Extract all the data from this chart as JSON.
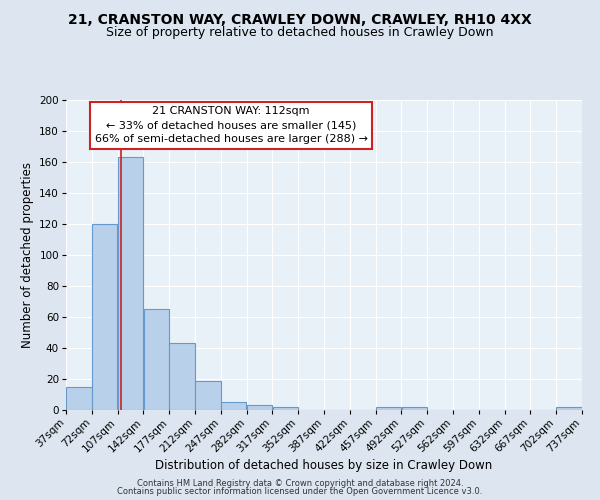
{
  "title1": "21, CRANSTON WAY, CRAWLEY DOWN, CRAWLEY, RH10 4XX",
  "title2": "Size of property relative to detached houses in Crawley Down",
  "xlabel": "Distribution of detached houses by size in Crawley Down",
  "ylabel": "Number of detached properties",
  "bin_edges": [
    37,
    72,
    107,
    142,
    177,
    212,
    247,
    282,
    317,
    352,
    387,
    422,
    457,
    492,
    527,
    562,
    597,
    632,
    667,
    702,
    737
  ],
  "bar_heights": [
    15,
    120,
    163,
    65,
    43,
    19,
    5,
    3,
    2,
    0,
    0,
    0,
    2,
    2,
    0,
    0,
    0,
    0,
    0,
    2
  ],
  "bar_color": "#b8d0ea",
  "bar_edge_color": "#6699cc",
  "red_line_x": 112,
  "annotation_line0": "21 CRANSTON WAY: 112sqm",
  "annotation_line1": "← 33% of detached houses are smaller (145)",
  "annotation_line2": "66% of semi-detached houses are larger (288) →",
  "ylim": [
    0,
    200
  ],
  "yticks": [
    0,
    20,
    40,
    60,
    80,
    100,
    120,
    140,
    160,
    180,
    200
  ],
  "bg_color": "#dde6f0",
  "plot_bg_color": "#e8f0f8",
  "footer1": "Contains HM Land Registry data © Crown copyright and database right 2024.",
  "footer2": "Contains public sector information licensed under the Open Government Licence v3.0.",
  "annotation_box_color": "#ffffff",
  "annotation_box_edge": "#cc2222",
  "title1_fontsize": 10,
  "title2_fontsize": 9,
  "annotation_fontsize": 8,
  "tick_fontsize": 7.5,
  "label_fontsize": 8.5,
  "footer_fontsize": 6
}
